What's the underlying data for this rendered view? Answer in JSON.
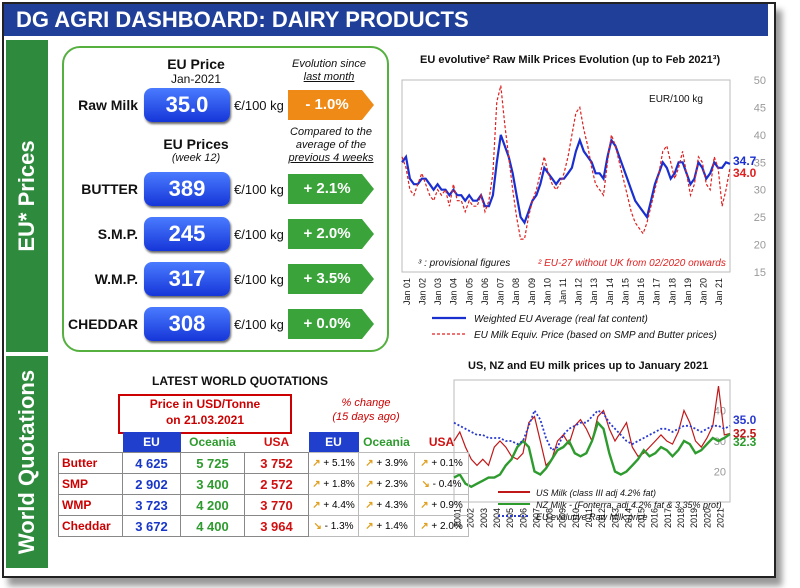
{
  "title": "DG AGRI DASHBOARD: DAIRY PRODUCTS",
  "sidebars": {
    "eu": "EU* Prices",
    "world": "World Quotations"
  },
  "eu_prices": {
    "eu_price_header": "EU Price",
    "month": "Jan-2021",
    "evolution_note_line1": "Evolution since",
    "evolution_note_line2": "last month",
    "raw_milk": {
      "label": "Raw Milk",
      "value": "35.0",
      "unit": "€/100 kg",
      "change": "- 1.0%"
    },
    "eu_prices_header": "EU Prices",
    "week": "(week 12)",
    "compared_note_line1": "Compared to the",
    "compared_note_line2": "average of the",
    "compared_note_line3": "previous 4 weeks",
    "products": [
      {
        "label": "BUTTER",
        "value": "389",
        "unit": "€/100 kg",
        "change": "+ 2.1%"
      },
      {
        "label": "S.M.P.",
        "value": "245",
        "unit": "€/100 kg",
        "change": "+ 2.0%"
      },
      {
        "label": "W.M.P.",
        "value": "317",
        "unit": "€/100 kg",
        "change": "+ 3.5%"
      },
      {
        "label": "CHEDDAR",
        "value": "308",
        "unit": "€/100 kg",
        "change": "+ 0.0%"
      }
    ]
  },
  "world": {
    "title": "LATEST WORLD QUOTATIONS",
    "price_header_line1": "Price in USD/Tonne",
    "price_header_line2": "on 21.03.2021",
    "change_header_line1": "% change",
    "change_header_line2": "(15 days ago)",
    "columns": [
      "EU",
      "Oceania",
      "USA"
    ],
    "rows": [
      {
        "product": "Butter",
        "prices": [
          "4 625",
          "5 725",
          "3 752"
        ],
        "changes": [
          "+ 5.1%",
          "+ 3.9%",
          "+ 0.1%"
        ]
      },
      {
        "product": "SMP",
        "prices": [
          "2 902",
          "3 400",
          "2 572"
        ],
        "changes": [
          "+ 1.8%",
          "+ 2.3%",
          "- 0.4%"
        ]
      },
      {
        "product": "WMP",
        "prices": [
          "3 723",
          "4 200",
          "3 770"
        ],
        "changes": [
          "+ 4.4%",
          "+ 4.3%",
          "+ 0.9%"
        ]
      },
      {
        "product": "Cheddar",
        "prices": [
          "3 672",
          "4 400",
          "3 964"
        ],
        "changes": [
          "- 1.3%",
          "+ 1.4%",
          "+ 2.0%"
        ]
      }
    ],
    "colors": {
      "eu_price": "#1836c8",
      "oceania_price": "#2e9b2e",
      "usa_price": "#d01010",
      "header_fill": "#1f3fcc"
    }
  },
  "chart_data": [
    {
      "type": "line",
      "title": "EU evolutive² Raw Milk Prices Evolution (up to Feb 2021³)",
      "unit_label": "EUR/100 kg",
      "ylim": [
        15,
        50
      ],
      "yticks": [
        "15",
        "20",
        "25",
        "30",
        "35",
        "40",
        "45",
        "50"
      ],
      "x_labels": [
        "Jan 01",
        "Jan 02",
        "Jan 03",
        "Jan 04",
        "Jan 05",
        "Jan 06",
        "Jan 07",
        "Jan 08",
        "Jan 09",
        "Jan 10",
        "Jan 11",
        "Jan 12",
        "Jan 13",
        "Jan 14",
        "Jan 15",
        "Jan 16",
        "Jan 17",
        "Jan 18",
        "Jan 19",
        "Jan 20",
        "Jan 21"
      ],
      "grid": false,
      "series": [
        {
          "name": "Weighted EU Average (real fat content)",
          "color": "#1a2fd0",
          "end_label": "34.7",
          "values": [
            35,
            36,
            32,
            31,
            31,
            32,
            32,
            31,
            30,
            31,
            30,
            30,
            29,
            30,
            29,
            29,
            28,
            29,
            28,
            28,
            29,
            27,
            27,
            29,
            35,
            40,
            38,
            36,
            33,
            29,
            25,
            24,
            26,
            28,
            29,
            31,
            34,
            33,
            32,
            31,
            32,
            32,
            33,
            34,
            37,
            39,
            37,
            36,
            35,
            33,
            33,
            32,
            36,
            39,
            38,
            36,
            34,
            32,
            30,
            28,
            27,
            26,
            25,
            28,
            31,
            33,
            35,
            34,
            32,
            33,
            35,
            35,
            33,
            31,
            32,
            35,
            34,
            32,
            33,
            35,
            34,
            34,
            35,
            34.7
          ]
        },
        {
          "name": "EU Milk Equiv. Price (based on SMP and Butter prices)",
          "color": "#e02020",
          "end_label": "34.0",
          "values": [
            36,
            34,
            30,
            29,
            31,
            33,
            31,
            29,
            28,
            30,
            29,
            30,
            27,
            31,
            28,
            28,
            26,
            28,
            27,
            27,
            29,
            26,
            28,
            33,
            46,
            49,
            42,
            36,
            30,
            25,
            21,
            21,
            25,
            28,
            30,
            33,
            36,
            33,
            31,
            30,
            31,
            33,
            36,
            40,
            44,
            45,
            41,
            38,
            34,
            31,
            30,
            29,
            35,
            40,
            38,
            35,
            32,
            29,
            26,
            24,
            23,
            22,
            24,
            27,
            30,
            33,
            37,
            38,
            35,
            32,
            34,
            37,
            33,
            29,
            31,
            36,
            35,
            31,
            30,
            36,
            34,
            27,
            30,
            34.0
          ]
        }
      ],
      "notes": {
        "provisional": "³ : provisional figures",
        "eu27": "² EU-27 without UK from 02/2020 onwards"
      }
    },
    {
      "type": "line",
      "title": "US, NZ and EU milk prices up to January 2021",
      "ylim": [
        10,
        50
      ],
      "yticks": [
        "20",
        "30",
        "40"
      ],
      "x_labels": [
        "2001",
        "2002",
        "2003",
        "2004",
        "2005",
        "2006",
        "2007",
        "2008",
        "2009",
        "2010",
        "2011",
        "2012",
        "2013",
        "2014",
        "2015",
        "2016",
        "2017",
        "2018",
        "2019",
        "2020",
        "2021"
      ],
      "grid": false,
      "series": [
        {
          "name": "US Milk (class III adj 4.2% fat)",
          "color": "#c01818",
          "end_label": "32.5",
          "values": [
            30,
            33,
            28,
            24,
            22,
            24,
            22,
            28,
            30,
            28,
            25,
            24,
            26,
            36,
            38,
            30,
            22,
            24,
            30,
            32,
            29,
            35,
            37,
            34,
            30,
            38,
            40,
            34,
            30,
            33,
            36,
            28,
            25,
            26,
            28,
            30,
            32,
            30,
            29,
            33,
            40,
            36,
            30,
            28,
            31,
            35,
            48,
            32,
            32.5
          ]
        },
        {
          "name": "NZ Milk - (Fonterra, adj 4.2% fat & 3.35% prot)",
          "color": "#2e9b2e",
          "end_label": "32.3",
          "values": [
            18,
            19,
            16,
            15,
            16,
            17,
            18,
            18,
            19,
            22,
            24,
            28,
            30,
            28,
            20,
            19,
            21,
            24,
            27,
            28,
            30,
            26,
            25,
            26,
            30,
            36,
            34,
            26,
            20,
            19,
            20,
            22,
            24,
            27,
            25,
            26,
            28,
            27,
            25,
            27,
            30,
            29,
            26,
            27,
            29,
            31,
            30,
            31,
            32.3
          ]
        },
        {
          "name": "EU evolutive Raw Milk price",
          "color": "#2a3ad0",
          "end_label": "35.0",
          "values": [
            36,
            35,
            34,
            33,
            32,
            32,
            31,
            31,
            31,
            30,
            30,
            29,
            30,
            35,
            40,
            37,
            31,
            27,
            28,
            32,
            34,
            35,
            36,
            36,
            38,
            40,
            39,
            36,
            34,
            32,
            30,
            29,
            30,
            31,
            32,
            33,
            34,
            34,
            33,
            34,
            35,
            35,
            34,
            33,
            34,
            35,
            35,
            34,
            35.0
          ]
        }
      ]
    }
  ]
}
